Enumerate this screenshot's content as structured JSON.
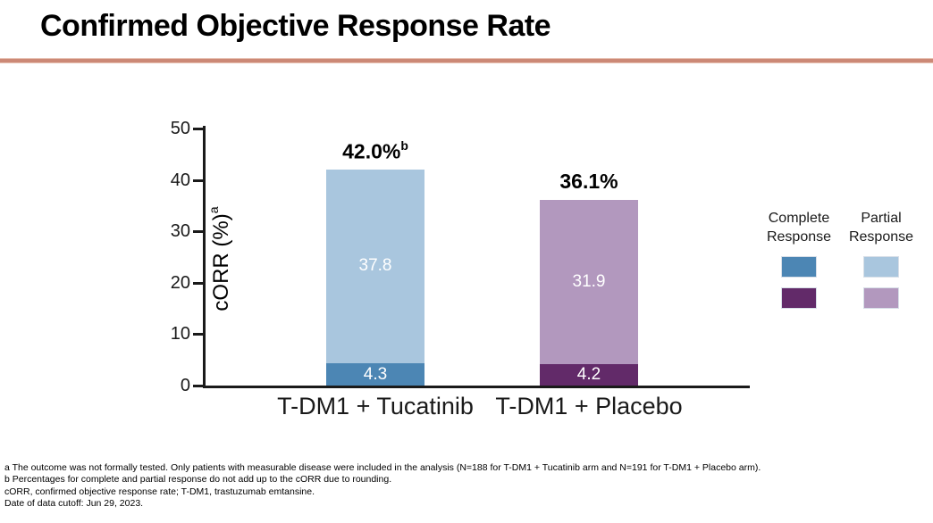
{
  "title": "Confirmed Objective Response Rate",
  "accent_rule_color": "#CC8976",
  "chart_data": {
    "type": "bar",
    "stacked": true,
    "title": "Confirmed Objective Response Rate",
    "xlabel": "",
    "ylabel": "cORR (%)",
    "ylabel_superscript": "a",
    "ylim": [
      0,
      50
    ],
    "yticks": [
      0,
      10,
      20,
      30,
      40,
      50
    ],
    "grid": false,
    "legend_position": "right",
    "categories": [
      "T-DM1 + Tucatinib",
      "T-DM1 + Placebo"
    ],
    "series": [
      {
        "name": "Complete Response",
        "values": [
          4.3,
          4.2
        ],
        "colors": [
          "#4C86B4",
          "#622A69"
        ]
      },
      {
        "name": "Partial Response",
        "values": [
          37.8,
          31.9
        ],
        "colors": [
          "#A9C6DE",
          "#B298BE"
        ]
      }
    ],
    "totals": [
      {
        "label": "42.0%",
        "superscript": "b"
      },
      {
        "label": "36.1%",
        "superscript": ""
      }
    ]
  },
  "legend": {
    "columns": [
      {
        "label": "Complete Response",
        "swatches": [
          "#4C86B4",
          "#622A69"
        ]
      },
      {
        "label": "Partial Response",
        "swatches": [
          "#A9C6DE",
          "#B298BE"
        ]
      }
    ]
  },
  "footnotes": [
    "a The outcome was not formally tested. Only patients with measurable disease were included in the analysis (N=188 for T-DM1 + Tucatinib arm and N=191 for T-DM1 + Placebo arm).",
    "b Percentages for complete and partial response do not add up to the cORR due to rounding.",
    "cORR, confirmed objective response rate; T-DM1, trastuzumab emtansine.",
    "Date of data cutoff: Jun 29, 2023."
  ]
}
